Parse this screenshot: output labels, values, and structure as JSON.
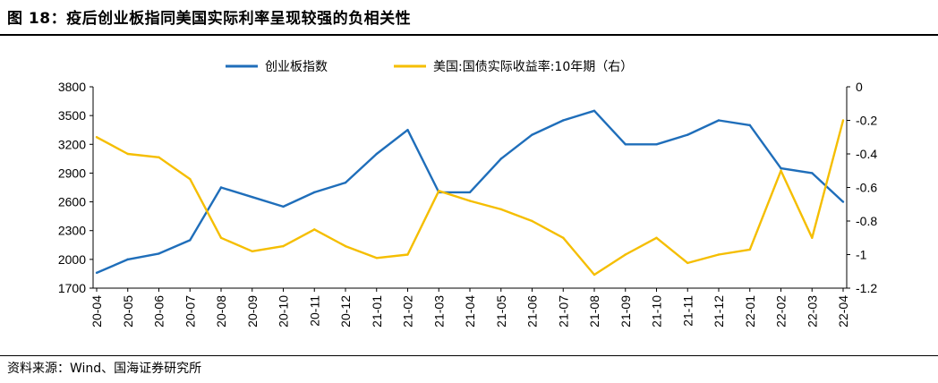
{
  "header": {
    "title": "图 18：疫后创业板指同美国实际利率呈现较强的负相关性"
  },
  "footer": {
    "source": "资料来源：Wind、国海证券研究所"
  },
  "chart_data": {
    "type": "line",
    "title": "图 18：疫后创业板指同美国实际利率呈现较强的负相关性",
    "legend_position": "top-center",
    "grid": false,
    "categories": [
      "20-04",
      "20-05",
      "20-06",
      "20-07",
      "20-08",
      "20-09",
      "20-10",
      "20-11",
      "20-12",
      "21-01",
      "21-02",
      "21-03",
      "21-04",
      "21-05",
      "21-06",
      "21-07",
      "21-08",
      "21-09",
      "21-10",
      "21-11",
      "21-12",
      "22-01",
      "22-02",
      "22-03",
      "22-04"
    ],
    "y_left": {
      "ylim": [
        1700,
        3800
      ],
      "ticks": [
        "1700",
        "2000",
        "2300",
        "2600",
        "2900",
        "3200",
        "3500",
        "3800"
      ]
    },
    "y_right": {
      "ylim": [
        -1.2,
        0
      ],
      "ticks": [
        "-1.2",
        "-1",
        "-0.8",
        "-0.6",
        "-0.4",
        "-0.2",
        "0"
      ]
    },
    "series": [
      {
        "name": "创业板指数",
        "axis": "left",
        "color": "#1F6EBA",
        "values": [
          1860,
          2000,
          2060,
          2200,
          2750,
          2650,
          2550,
          2700,
          2800,
          3100,
          3350,
          2700,
          2700,
          3050,
          3300,
          3450,
          3550,
          3200,
          3200,
          3300,
          3450,
          3400,
          2950,
          2900,
          2600
        ]
      },
      {
        "name": "美国:国债实际收益率:10年期（右）",
        "axis": "right",
        "color": "#F5BE00",
        "values": [
          -0.3,
          -0.4,
          -0.42,
          -0.55,
          -0.9,
          -0.98,
          -0.95,
          -0.85,
          -0.95,
          -1.02,
          -1.0,
          -0.62,
          -0.68,
          -0.73,
          -0.8,
          -0.9,
          -1.12,
          -1.0,
          -0.9,
          -1.05,
          -1.0,
          -0.97,
          -0.5,
          -0.9,
          -0.2
        ]
      }
    ]
  }
}
